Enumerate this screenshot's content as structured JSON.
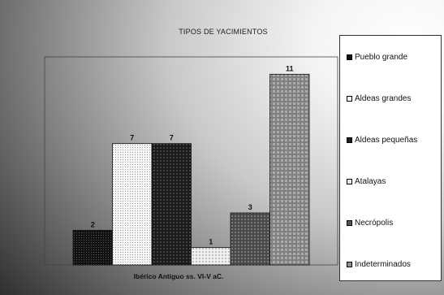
{
  "chart_data": {
    "type": "bar",
    "title": "TIPOS DE YACIMIENTOS",
    "xlabel": "Ibérico Antiguo ss. VI-V aC.",
    "ylabel": "",
    "categories": [
      "Ibérico Antiguo ss. VI-V aC."
    ],
    "ylim": [
      0,
      12
    ],
    "grid": false,
    "legend_position": "right",
    "series": [
      {
        "name": "Pueblo grande",
        "values": [
          2
        ],
        "color": "#111111",
        "pattern": "dark-dots"
      },
      {
        "name": "Aldeas grandes",
        "values": [
          7
        ],
        "color": "#f4f4f4",
        "pattern": "light-dots"
      },
      {
        "name": "Aldeas pequeñas",
        "values": [
          7
        ],
        "color": "#1e1e1e",
        "pattern": "dark-grid"
      },
      {
        "name": "Atalayas",
        "values": [
          1
        ],
        "color": "#e8e8e8",
        "pattern": "light-grid"
      },
      {
        "name": "Necrópolis",
        "values": [
          3
        ],
        "color": "#555555",
        "pattern": "mid-grid"
      },
      {
        "name": "Indeterminados",
        "values": [
          11
        ],
        "color": "#8f8f8f",
        "pattern": "grey-grid"
      }
    ]
  }
}
